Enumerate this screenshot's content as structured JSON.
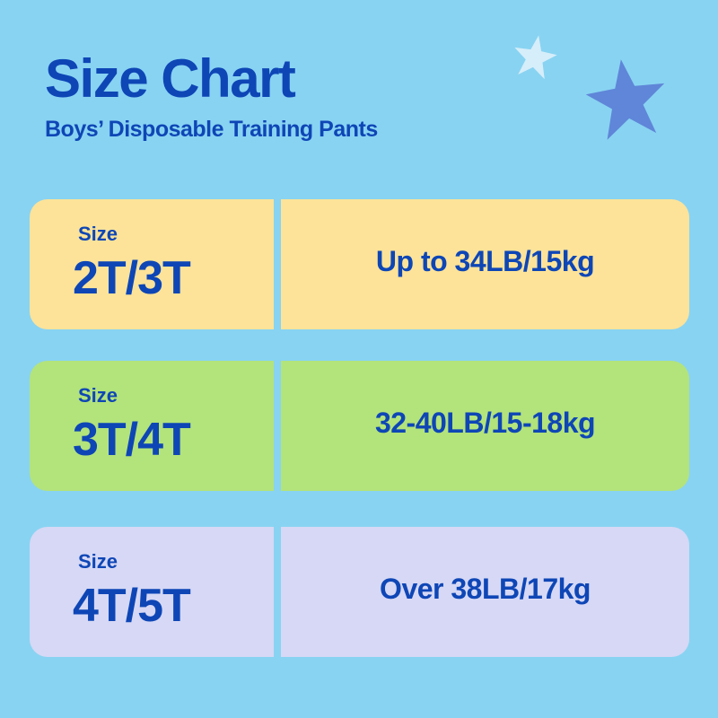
{
  "header": {
    "title": "Size Chart",
    "subtitle": "Boys’ Disposable Training Pants"
  },
  "decorations": [
    {
      "icon": "star-icon",
      "color": "#d6eefa"
    },
    {
      "icon": "star-icon",
      "color": "#5f86d8"
    }
  ],
  "rows": [
    {
      "label": "Size",
      "size": "2T/3T",
      "weight": "Up to 34LB/15kg",
      "color": "#fce399"
    },
    {
      "label": "Size",
      "size": "3T/4T",
      "weight": "32-40LB/15-18kg",
      "color": "#b3e37b"
    },
    {
      "label": "Size",
      "size": "4T/5T",
      "weight": "Over 38LB/17kg",
      "color": "#d6d8f5"
    }
  ],
  "colors": {
    "background": "#88d3f2",
    "text": "#0e46b6"
  }
}
